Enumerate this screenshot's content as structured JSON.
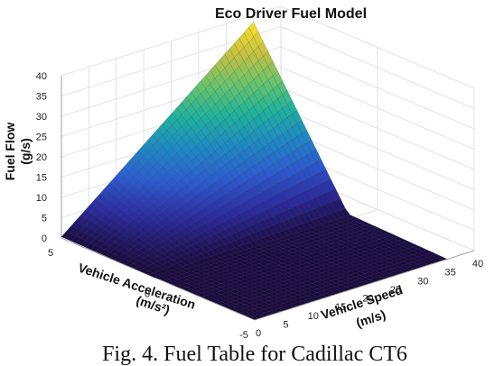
{
  "chart_data": {
    "type": "surface",
    "title": "Eco Driver Fuel Model",
    "xlabel": "Vehicle Speed",
    "xlabel_unit": "(m/s)",
    "ylabel": "Vehicle Acceleration",
    "ylabel_unit": "(m/s²)",
    "zlabel": "Fuel Flow",
    "zlabel_unit": "(g/s)",
    "x_ticks": [
      "0",
      "5",
      "10",
      "15",
      "20",
      "25",
      "30",
      "35",
      "40"
    ],
    "y_ticks": [
      "5",
      "0",
      "-5"
    ],
    "z_ticks": [
      "0",
      "5",
      "10",
      "15",
      "20",
      "25",
      "30",
      "35",
      "40"
    ],
    "xlim": [
      0,
      40
    ],
    "ylim": [
      -5,
      5
    ],
    "zlim": [
      0,
      40
    ],
    "grid": true,
    "colormap": "parula",
    "colors": [
      "#1a0a3c",
      "#2b2a9c",
      "#2d5bd0",
      "#1e8ac4",
      "#1fb39a",
      "#6cc46a",
      "#c8c040",
      "#f6e22a"
    ],
    "corner_values": [
      {
        "speed": 0,
        "accel": 5,
        "fuel": 0.5
      },
      {
        "speed": 35,
        "accel": 5,
        "fuel": 38
      },
      {
        "speed": 35,
        "accel": -5,
        "fuel": 0.2
      },
      {
        "speed": 0,
        "accel": -5,
        "fuel": 0.1
      }
    ]
  },
  "caption": "Fig. 4. Fuel Table for Cadillac CT6"
}
